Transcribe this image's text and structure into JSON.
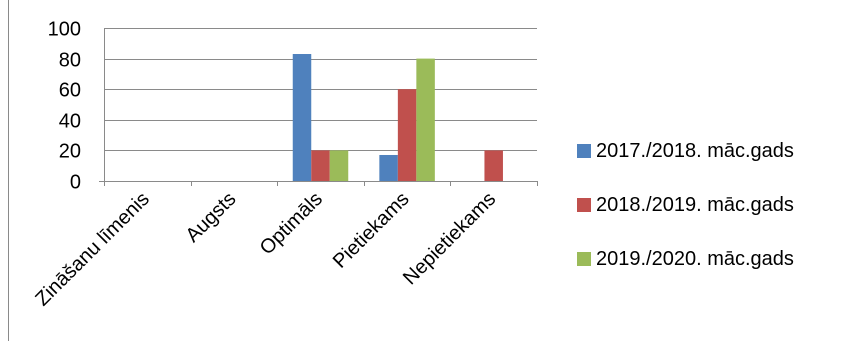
{
  "chart_data": {
    "type": "bar",
    "categories": [
      "Zināšanu līmenis",
      "Augsts",
      "Optimāls",
      "Pietiekams",
      "Nepietiekams"
    ],
    "series": [
      {
        "name": "2017./2018. māc.gads",
        "color": "#4f81bd",
        "values": [
          null,
          0,
          83,
          17,
          0
        ]
      },
      {
        "name": "2018./2019. māc.gads",
        "color": "#c0504d",
        "values": [
          null,
          0,
          20,
          60,
          20
        ]
      },
      {
        "name": "2019./2020. māc.gads",
        "color": "#9bbb59",
        "values": [
          null,
          0,
          20,
          80,
          0
        ]
      }
    ],
    "y_ticks": [
      "0",
      "20",
      "40",
      "60",
      "80",
      "100"
    ],
    "ylim": [
      0,
      100
    ],
    "grid": true,
    "legend_position": "right"
  }
}
